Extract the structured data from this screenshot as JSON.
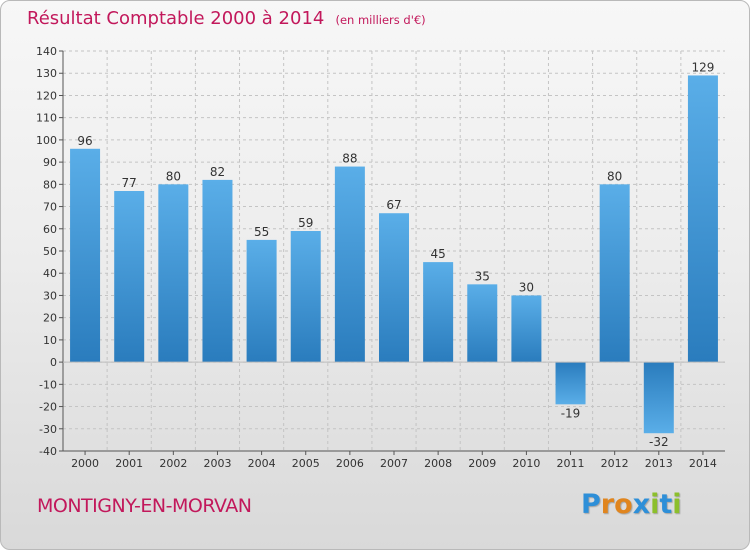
{
  "title": "Résultat Comptable 2000 à 2014",
  "unit_note": "(en milliers d'€)",
  "place_name": "MONTIGNY-EN-MORVAN",
  "logo": {
    "text": "Proxiti",
    "letter_colors": [
      "#2e8fd8",
      "#e0851e",
      "#e0851e",
      "#2e8fd8",
      "#8cbf2c",
      "#2e8fd8",
      "#8cbf2c"
    ]
  },
  "colors": {
    "title": "#c2185b",
    "bar_light": "#5aaee8",
    "bar_dark": "#2a7cbd",
    "axis": "#555555",
    "grid": "#c4c4c4"
  },
  "chart_data": {
    "type": "bar",
    "title": "Résultat Comptable 2000 à 2014",
    "xlabel": "",
    "ylabel": "",
    "categories": [
      "2000",
      "2001",
      "2002",
      "2003",
      "2004",
      "2005",
      "2006",
      "2007",
      "2008",
      "2009",
      "2010",
      "2011",
      "2012",
      "2013",
      "2014"
    ],
    "values": [
      96,
      77,
      80,
      82,
      55,
      59,
      88,
      67,
      45,
      35,
      30,
      -19,
      80,
      -32,
      129
    ],
    "value_labels": [
      "96",
      "77",
      "80",
      "82",
      "55",
      "59",
      "88",
      "67",
      "45",
      "35",
      "30",
      "-19",
      "80",
      "-32",
      "129"
    ],
    "ylim": [
      -40,
      140
    ],
    "yticks": [
      140,
      130,
      120,
      110,
      100,
      90,
      80,
      70,
      60,
      50,
      40,
      30,
      20,
      10,
      0,
      -10,
      -20,
      -30,
      -40
    ],
    "ytick_labels": [
      "140",
      "130",
      "120",
      "110",
      "100",
      "90",
      "80",
      "70",
      "60",
      "50",
      "40",
      "30",
      "20",
      "10",
      "0",
      "-10",
      "-20",
      "-30",
      "-40"
    ],
    "grid": true,
    "legend": "none"
  }
}
